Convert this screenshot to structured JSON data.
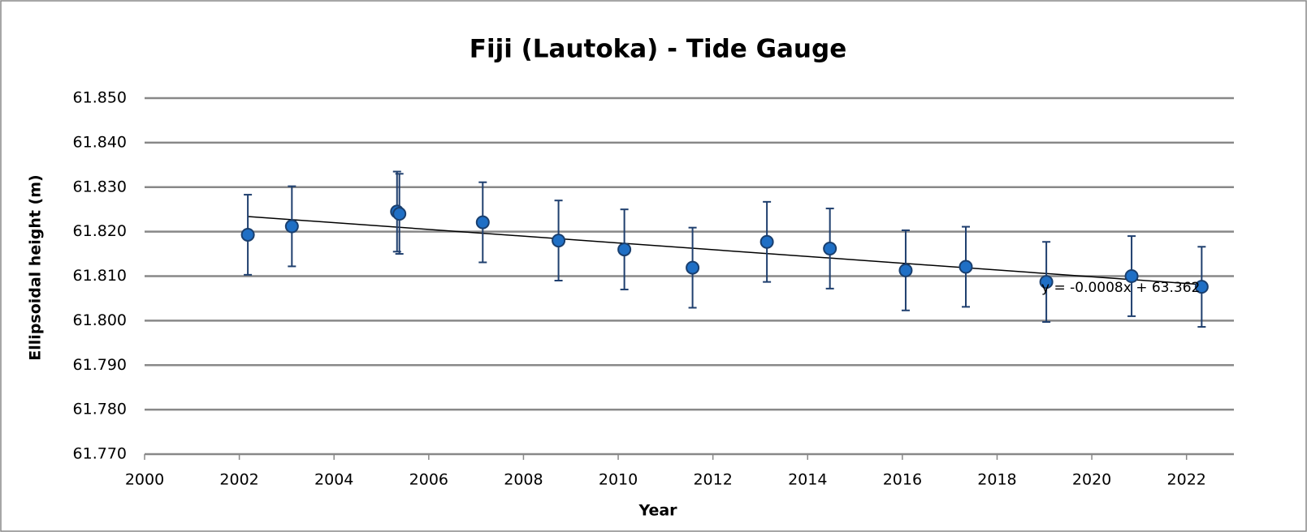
{
  "chart_data": {
    "type": "scatter",
    "title": "Fiji (Lautoka) - Tide Gauge",
    "x_label": "Year",
    "y_label": "Ellipsoidal height (m)",
    "xlim": [
      2000,
      2023
    ],
    "xticks": [
      2000,
      2002,
      2004,
      2006,
      2008,
      2010,
      2012,
      2014,
      2016,
      2018,
      2020,
      2022
    ],
    "ylim": [
      61.77,
      61.85
    ],
    "yticks": [
      {
        "value": 61.77,
        "label": "61.770"
      },
      {
        "value": 61.78,
        "label": "61.780"
      },
      {
        "value": 61.79,
        "label": "61.790"
      },
      {
        "value": 61.8,
        "label": "61.800"
      },
      {
        "value": 61.81,
        "label": "61.810"
      },
      {
        "value": 61.82,
        "label": "61.820"
      },
      {
        "value": 61.83,
        "label": "61.830"
      },
      {
        "value": 61.84,
        "label": "61.840"
      },
      {
        "value": 61.85,
        "label": "61.850"
      }
    ],
    "grid": true,
    "series": [
      {
        "color": "#1f6fc5",
        "x": [
          2002.18,
          2003.11,
          2005.33,
          2005.38,
          2007.14,
          2008.74,
          2010.13,
          2011.57,
          2013.14,
          2014.47,
          2016.07,
          2017.34,
          2019.04,
          2020.84,
          2022.32
        ],
        "values": [
          61.8193,
          61.8212,
          61.8245,
          61.824,
          61.8221,
          61.818,
          61.816,
          61.8119,
          61.8177,
          61.8162,
          61.8113,
          61.8121,
          61.8087,
          61.81,
          61.8076
        ],
        "error": [
          0.009,
          0.009,
          0.009,
          0.009,
          0.009,
          0.009,
          0.009,
          0.009,
          0.009,
          0.009,
          0.009,
          0.009,
          0.009,
          0.009,
          0.009
        ]
      }
    ],
    "trendline": {
      "label": "y = -0.0008x + 63.362",
      "color": "#000000",
      "x": [
        2002.18,
        2022.32
      ],
      "values": [
        61.8234,
        61.8081
      ]
    }
  }
}
